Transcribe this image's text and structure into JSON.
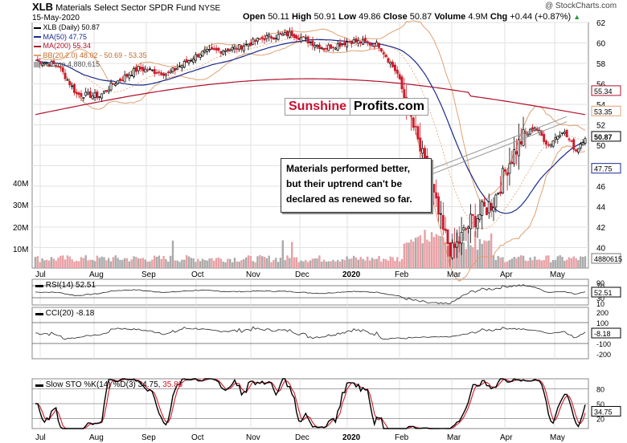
{
  "header": {
    "symbol": "XLB",
    "name": "Materials Select Sector SPDR Fund",
    "exchange": "NYSE",
    "copyright": "@ StockCharts.com",
    "date": "15-May-2020",
    "quote": {
      "open_label": "Open",
      "open": "50.11",
      "high_label": "High",
      "high": "50.91",
      "low_label": "Low",
      "low": "49.86",
      "close_label": "Close",
      "close": "50.87",
      "volume_label": "Volume",
      "volume": "4.9M",
      "chg_label": "Chg",
      "chg": "+0.44 (+0.87%)"
    }
  },
  "legend": [
    {
      "text": "XLB (Daily) 50.87",
      "color": "#000000"
    },
    {
      "text": "MA(50) 47.75",
      "color": "#1a2a8c"
    },
    {
      "text": "MA(200) 55.34",
      "color": "#b0102a"
    },
    {
      "text": "BB(20,2.0) 48.02 - 50.69 - 53.35",
      "color": "#c06a2a"
    },
    {
      "text": "Volume 4,880,615",
      "color": "#555555"
    }
  ],
  "logo": {
    "part1": "Sunshine",
    "part2": "Profits.com"
  },
  "callout": {
    "lines": [
      "Materials performed better,",
      "but their uptrend can't be",
      "declared as renewed so far."
    ]
  },
  "value_tags": {
    "ma200": "55.34",
    "bb_upper": "53.35",
    "close": "50.87",
    "ma50": "47.75",
    "volume": "4880615",
    "rsi": "52.51",
    "cci": "-8.18",
    "sto": "34.75"
  },
  "panels": {
    "rsi": {
      "label": "RSI(14) 52.51",
      "ticks": [
        "90",
        "70",
        "50",
        "30",
        "10"
      ]
    },
    "cci": {
      "label": "CCI(20) -8.18",
      "ticks": [
        "200",
        "100",
        "0",
        "-100",
        "-200"
      ]
    },
    "sto": {
      "label": "Slow STO %K(14) %D(3) 34.75, 35.88",
      "label_a": "Slow STO %K(14) %D(3) 34.75,",
      "label_b": "35.88",
      "ticks": [
        "80",
        "50",
        "20"
      ]
    }
  },
  "colors": {
    "up_candle": "#000000",
    "down_candle": "#cc1b2b",
    "ma50": "#1a2a8c",
    "ma200": "#b0102a",
    "bb": "#e0a070",
    "vol_up": "#aaaaaa",
    "vol_down": "#e8a0a4",
    "grid": "#e2e2e2"
  },
  "chart_data": [
    {
      "type": "candlestick",
      "title": "XLB Materials Select Sector SPDR Fund NYSE",
      "x_tick_labels": [
        "Jul",
        "Aug",
        "Sep",
        "Oct",
        "Nov",
        "Dec",
        "2020",
        "Feb",
        "Mar",
        "Apr",
        "May"
      ],
      "y_tick_labels": [
        "62",
        "60",
        "58",
        "56",
        "54",
        "52",
        "50",
        "48",
        "46",
        "44",
        "42",
        "40"
      ],
      "volume_tick_labels": [
        "40M",
        "30M",
        "20M",
        "10M"
      ],
      "ylim": [
        38,
        62
      ],
      "grid": true,
      "approx_monthly_close": [
        {
          "x": "Jul",
          "close": 58.5
        },
        {
          "x": "Aug",
          "close": 55.5
        },
        {
          "x": "Sep",
          "close": 56.5
        },
        {
          "x": "Oct",
          "close": 57.5
        },
        {
          "x": "Nov",
          "close": 59.5
        },
        {
          "x": "Dec",
          "close": 60.5
        },
        {
          "x": "2020",
          "close": 61.0
        },
        {
          "x": "Feb",
          "close": 59.0
        },
        {
          "x": "Mar",
          "close": 52.0
        },
        {
          "x": "Apr",
          "close": 44.0
        },
        {
          "x": "May",
          "close": 50.87
        }
      ],
      "series": [
        {
          "name": "MA(50)",
          "last": 47.75
        },
        {
          "name": "MA(200)",
          "last": 55.34
        },
        {
          "name": "BB(20,2.0)",
          "lower": 48.02,
          "middle": 50.69,
          "upper": 53.35
        }
      ]
    },
    {
      "type": "line",
      "title": "RSI(14)",
      "last": 52.51,
      "ylim": [
        0,
        100
      ]
    },
    {
      "type": "area",
      "title": "CCI(20)",
      "last": -8.18,
      "ylim": [
        -250,
        250
      ]
    },
    {
      "type": "line",
      "title": "Slow STO %K(14) %D(3)",
      "k": 34.75,
      "d": 35.88,
      "ylim": [
        0,
        100
      ]
    }
  ]
}
